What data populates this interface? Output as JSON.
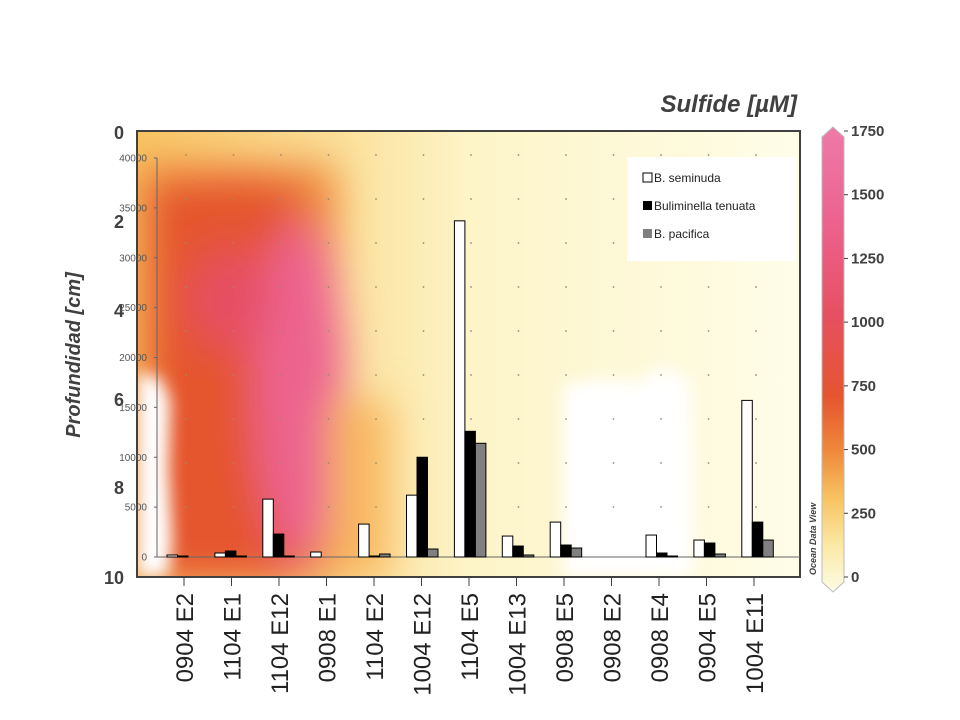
{
  "chart_data": {
    "type": "bar",
    "title": "Sulfide [µM]",
    "ylabel": "Profundidad [cm]",
    "depth_ticks": [
      "0",
      "2",
      "4",
      "6",
      "8",
      "10"
    ],
    "colorbar": {
      "ticks": [
        "1750",
        "1500",
        "1250",
        "1000",
        "750",
        "500",
        "250",
        "0"
      ],
      "colors": [
        "#fdfbe6",
        "#fbe9a6",
        "#f8c462",
        "#ef8a3c",
        "#e5552f",
        "#e65063",
        "#ec6390",
        "#ee7aa8"
      ],
      "label": "Ocean Data View"
    },
    "count_axis": {
      "ticks": [
        "40000",
        "35000",
        "30000",
        "25000",
        "20000",
        "15000",
        "10000",
        "5000",
        "0"
      ],
      "ylim": [
        0,
        40000
      ]
    },
    "categories": [
      "0904 E2",
      "1104 E1",
      "1104 E12",
      "0908 E1",
      "1104 E2",
      "1004 E12",
      "1104 E5",
      "1004 E13",
      "0908 E5",
      "0908 E2",
      "0908 E4",
      "0904 E5",
      "1004 E11"
    ],
    "series": [
      {
        "name": "B. seminuda",
        "color": "#ffffff",
        "values": [
          200,
          400,
          5800,
          500,
          3300,
          6200,
          33700,
          2100,
          3500,
          0,
          2200,
          1700,
          15700
        ]
      },
      {
        "name": "Buliminella tenuata",
        "color": "#000000",
        "values": [
          100,
          600,
          2300,
          0,
          100,
          10000,
          12600,
          1100,
          1200,
          0,
          400,
          1400,
          3500
        ]
      },
      {
        "name": "B. pacifica",
        "color": "#808080",
        "values": [
          0,
          100,
          100,
          0,
          300,
          800,
          11400,
          200,
          900,
          0,
          100,
          300,
          1700
        ]
      }
    ],
    "legend_position": "top-right"
  }
}
